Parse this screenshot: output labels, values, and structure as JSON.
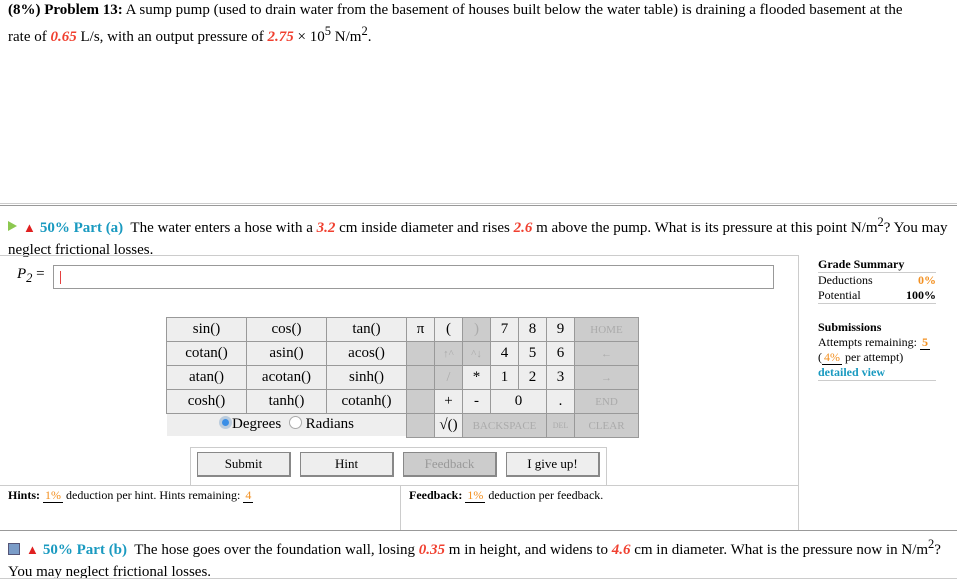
{
  "problem": {
    "weight": "(8%)",
    "label": "Problem 13:",
    "text1": "A sump pump (used to drain water from the basement of houses built below the water table) is draining a flooded basement at the rate of",
    "rate": "0.65",
    "text2": "L/s, with an output pressure of",
    "pressure": "2.75",
    "text3": "× 10",
    "exp": "5",
    "text4": "N/m",
    "exp2": "2",
    "text5": "."
  },
  "part_a": {
    "pct": "50%",
    "label": "Part (a)",
    "t1": "The water enters a hose with a",
    "d": "3.2",
    "t2": "cm inside diameter and rises",
    "h": "2.6",
    "t3": "m above the pump. What is its pressure at this point N/m",
    "sup": "2",
    "t4": "? You may neglect frictional losses.",
    "answer_label": "P",
    "answer_sub": "2",
    "answer_eq": " =",
    "answer_value": "|"
  },
  "keypad": {
    "functions": [
      [
        "sin()",
        "cos()",
        "tan()"
      ],
      [
        "cotan()",
        "asin()",
        "acos()"
      ],
      [
        "atan()",
        "acotan()",
        "sinh()"
      ],
      [
        "cosh()",
        "tanh()",
        "cotanh()"
      ]
    ],
    "degrees": "Degrees",
    "radians": "Radians",
    "selected": "Degrees",
    "pi": "π",
    "lparen": "(",
    "rparen": ")",
    "n7": "7",
    "n8": "8",
    "n9": "9",
    "home": "HOME",
    "up": "↑^",
    "down": "^↓",
    "n4": "4",
    "n5": "5",
    "n6": "6",
    "left": "←",
    "div": "/",
    "mul": "*",
    "n1": "1",
    "n2": "2",
    "n3": "3",
    "right": "→",
    "plus": "+",
    "minus": "-",
    "n0": "0",
    "dot": ".",
    "end": "END",
    "sqrt": "√()",
    "backspace": "BACKSPACE",
    "del": "DEL",
    "clear": "CLEAR"
  },
  "buttons": {
    "submit": "Submit",
    "hint": "Hint",
    "feedback": "Feedback",
    "giveup": "I give up!"
  },
  "hints": {
    "label": "Hints:",
    "pct": "1%",
    "t1": "deduction per hint. Hints remaining:",
    "remaining": "4"
  },
  "feedback": {
    "label": "Feedback:",
    "pct": "1%",
    "t1": "deduction per feedback."
  },
  "grade": {
    "title": "Grade Summary",
    "deductions_label": "Deductions",
    "deductions": "0%",
    "potential_label": "Potential",
    "potential": "100%",
    "submissions": "Submissions",
    "attempts_label": "Attempts remaining:",
    "attempts": "5",
    "per_pct": "4%",
    "per_text": "per attempt)",
    "open": "(",
    "detailed": "detailed view"
  },
  "part_b": {
    "pct": "50%",
    "label": "Part (b)",
    "t1": "The hose goes over the foundation wall, losing",
    "h": "0.35",
    "t2": "m in height, and widens to",
    "d": "4.6",
    "t3": "cm in diameter. What is the pressure now in N/m",
    "sup": "2",
    "t4": "? You may neglect frictional losses."
  },
  "colors": {
    "accent": "#1a9ac0",
    "variable": "#f04030",
    "orange": "#f39020"
  }
}
